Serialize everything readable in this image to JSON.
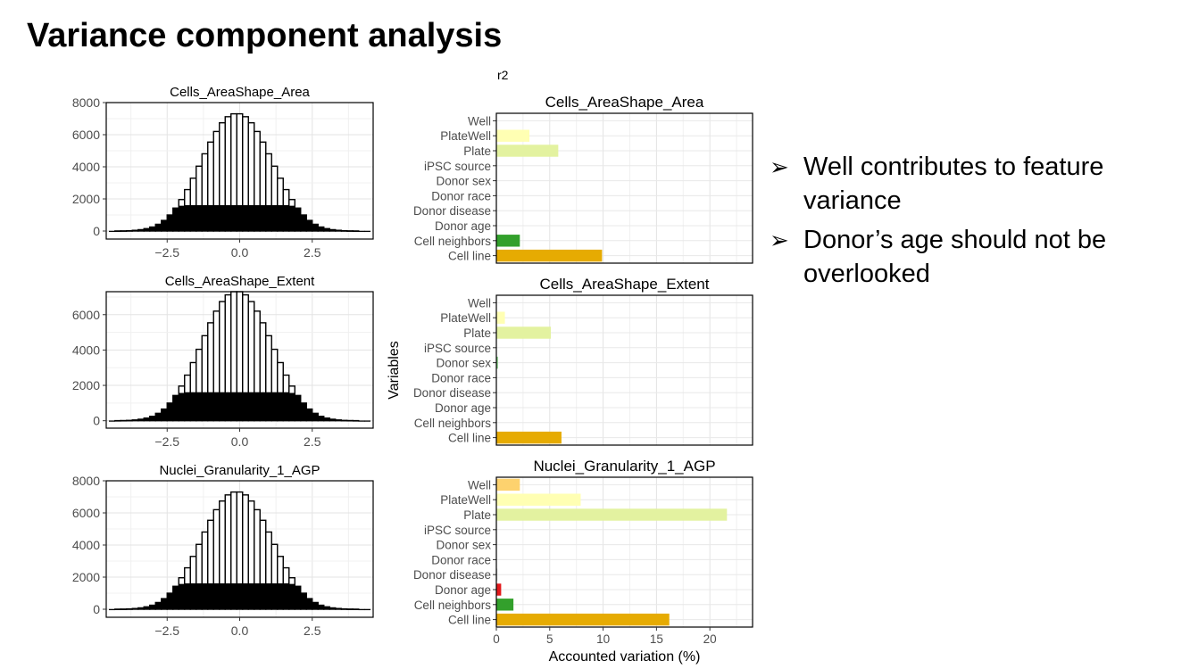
{
  "slide": {
    "title": "Variance component analysis",
    "r2_label": "r2"
  },
  "bullets": {
    "marker": "➢",
    "items": [
      "Well contributes to feature variance",
      "Donor’s age should not be overlooked"
    ]
  },
  "colors": {
    "Well": "#fdd26e",
    "PlateWell": "#ffffb3",
    "Plate": "#e3f2a0",
    "Donor sex": "#7fc97f",
    "Donor age": "#e31a1c",
    "Cell neighbors": "#33a02c",
    "Cell line": "#e6ab02"
  },
  "chart_data": [
    {
      "type": "bar",
      "subtype": "histogram",
      "title": "Cells_AreaShape_Area",
      "x_ticks": [
        -2.5,
        0.0,
        2.5
      ],
      "x_tick_labels": [
        "−2.5",
        "0.0",
        "2.5"
      ],
      "xlim": [
        -4.6,
        4.6
      ],
      "y_ticks": [
        0,
        2000,
        4000,
        6000,
        8000
      ],
      "ylim": [
        -500,
        8000
      ],
      "grid": true,
      "bin_width": 0.2,
      "bin_start": -4.5,
      "series": [
        {
          "values": [
            0,
            5,
            10,
            20,
            45,
            85,
            150,
            250,
            420,
            660,
            1000,
            1430,
            1960,
            2580,
            3290,
            4040,
            4810,
            5540,
            6200,
            6740,
            7120,
            7300,
            7300,
            7120,
            6740,
            6200,
            5540,
            4810,
            4040,
            3290,
            2580,
            1960,
            1430,
            1000,
            660,
            420,
            250,
            150,
            85,
            45,
            20,
            10,
            5,
            0,
            0
          ]
        },
        {
          "values": [
            0,
            5,
            10,
            20,
            45,
            85,
            150,
            250,
            420,
            660,
            1000,
            1430,
            1560,
            1600,
            1600,
            1600,
            1600,
            1600,
            1600,
            1600,
            1600,
            1600,
            1600,
            1600,
            1600,
            1600,
            1600,
            1600,
            1600,
            1600,
            1600,
            1560,
            1430,
            1000,
            660,
            420,
            250,
            150,
            85,
            45,
            20,
            10,
            5,
            0,
            0
          ]
        }
      ]
    },
    {
      "type": "bar",
      "subtype": "histogram",
      "title": "Cells_AreaShape_Extent",
      "x_ticks": [
        -2.5,
        0.0,
        2.5
      ],
      "x_tick_labels": [
        "−2.5",
        "0.0",
        "2.5"
      ],
      "xlim": [
        -4.6,
        4.6
      ],
      "y_ticks": [
        0,
        2000,
        4000,
        6000
      ],
      "ylim": [
        -420,
        7300
      ],
      "grid": true,
      "bin_width": 0.2,
      "bin_start": -4.5,
      "series": [
        {
          "values": [
            0,
            5,
            10,
            20,
            45,
            85,
            150,
            250,
            420,
            660,
            1000,
            1430,
            1960,
            2580,
            3290,
            4040,
            4810,
            5540,
            6200,
            6740,
            7120,
            7300,
            7300,
            7120,
            6740,
            6200,
            5540,
            4810,
            4040,
            3290,
            2580,
            1960,
            1430,
            1000,
            660,
            420,
            250,
            150,
            85,
            45,
            20,
            10,
            5,
            0,
            0
          ]
        },
        {
          "values": [
            0,
            5,
            10,
            20,
            45,
            85,
            150,
            250,
            420,
            660,
            1000,
            1430,
            1560,
            1600,
            1600,
            1600,
            1600,
            1600,
            1600,
            1600,
            1600,
            1600,
            1600,
            1600,
            1600,
            1600,
            1600,
            1600,
            1600,
            1600,
            1600,
            1560,
            1430,
            1000,
            660,
            420,
            250,
            150,
            85,
            45,
            20,
            10,
            5,
            0,
            0
          ]
        }
      ]
    },
    {
      "type": "bar",
      "subtype": "histogram",
      "title": "Nuclei_Granularity_1_AGP",
      "x_ticks": [
        -2.5,
        0.0,
        2.5
      ],
      "x_tick_labels": [
        "−2.5",
        "0.0",
        "2.5"
      ],
      "xlim": [
        -4.6,
        4.6
      ],
      "y_ticks": [
        0,
        2000,
        4000,
        6000,
        8000
      ],
      "ylim": [
        -500,
        8000
      ],
      "grid": true,
      "bin_width": 0.2,
      "bin_start": -4.5,
      "series": [
        {
          "values": [
            0,
            5,
            10,
            20,
            45,
            85,
            150,
            250,
            420,
            660,
            1000,
            1430,
            1960,
            2580,
            3290,
            4040,
            4810,
            5540,
            6200,
            6740,
            7120,
            7300,
            7300,
            7120,
            6740,
            6200,
            5540,
            4810,
            4040,
            3290,
            2580,
            1960,
            1430,
            1000,
            660,
            420,
            250,
            150,
            85,
            45,
            20,
            10,
            5,
            0,
            0
          ]
        },
        {
          "values": [
            0,
            5,
            10,
            20,
            45,
            85,
            150,
            250,
            420,
            660,
            1000,
            1430,
            1560,
            1600,
            1600,
            1600,
            1600,
            1600,
            1600,
            1600,
            1600,
            1600,
            1600,
            1600,
            1600,
            1600,
            1600,
            1600,
            1600,
            1600,
            1600,
            1560,
            1430,
            1000,
            660,
            420,
            250,
            150,
            85,
            45,
            20,
            10,
            5,
            0,
            0
          ]
        }
      ]
    },
    {
      "type": "bar",
      "orientation": "horizontal",
      "title": "Cells_AreaShape_Area",
      "ylabel": "Variables",
      "xlabel": "Accounted variation (%)",
      "xlim": [
        0,
        24
      ],
      "x_ticks": [
        0,
        5,
        10,
        15,
        20
      ],
      "grid": true,
      "categories": [
        "Well",
        "PlateWell",
        "Plate",
        "iPSC source",
        "Donor sex",
        "Donor race",
        "Donor disease",
        "Donor age",
        "Cell neighbors",
        "Cell line"
      ],
      "values": [
        0,
        3.1,
        5.8,
        0,
        0,
        0,
        0,
        0,
        2.2,
        9.9
      ]
    },
    {
      "type": "bar",
      "orientation": "horizontal",
      "title": "Cells_AreaShape_Extent",
      "ylabel": "Variables",
      "xlabel": "Accounted variation (%)",
      "xlim": [
        0,
        24
      ],
      "x_ticks": [
        0,
        5,
        10,
        15,
        20
      ],
      "grid": true,
      "categories": [
        "Well",
        "PlateWell",
        "Plate",
        "iPSC source",
        "Donor sex",
        "Donor race",
        "Donor disease",
        "Donor age",
        "Cell neighbors",
        "Cell line"
      ],
      "values": [
        0,
        0.8,
        5.1,
        0,
        0.15,
        0,
        0,
        0,
        0,
        6.1
      ]
    },
    {
      "type": "bar",
      "orientation": "horizontal",
      "title": "Nuclei_Granularity_1_AGP",
      "ylabel": "Variables",
      "xlabel": "Accounted variation (%)",
      "xlim": [
        0,
        24
      ],
      "x_ticks": [
        0,
        5,
        10,
        15,
        20
      ],
      "x_tick_labels": [
        "0",
        "5",
        "10",
        "15",
        "20"
      ],
      "grid": true,
      "categories": [
        "Well",
        "PlateWell",
        "Plate",
        "iPSC source",
        "Donor sex",
        "Donor race",
        "Donor disease",
        "Donor age",
        "Cell neighbors",
        "Cell line"
      ],
      "values": [
        2.2,
        7.9,
        21.6,
        0,
        0,
        0,
        0.1,
        0.45,
        1.6,
        16.2
      ]
    }
  ]
}
